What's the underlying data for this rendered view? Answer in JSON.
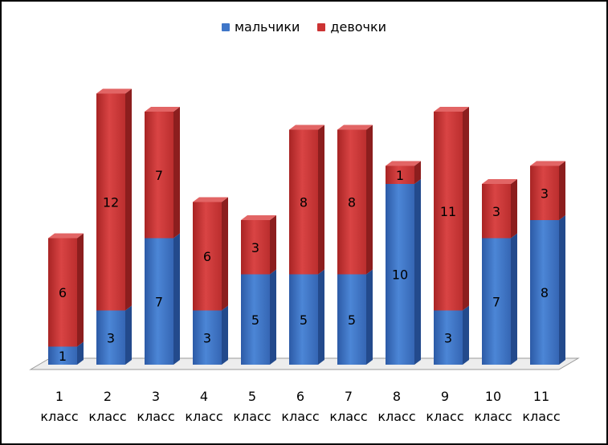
{
  "colors": {
    "boys": "#3f76c8",
    "girls": "#cc3333"
  },
  "chart_data": {
    "type": "bar",
    "stacked": true,
    "style": "3d",
    "legend_position": "top",
    "categories": [
      [
        "1",
        "класс"
      ],
      [
        "2",
        "класс"
      ],
      [
        "3",
        "класс"
      ],
      [
        "4",
        "класс"
      ],
      [
        "5",
        "класс"
      ],
      [
        "6",
        "класс"
      ],
      [
        "7",
        "класс"
      ],
      [
        "8",
        "класс"
      ],
      [
        "9",
        "класс"
      ],
      [
        "10",
        "класс"
      ],
      [
        "11",
        "класс"
      ]
    ],
    "series": [
      {
        "name": "мальчики",
        "values": [
          1,
          3,
          7,
          3,
          5,
          5,
          5,
          10,
          3,
          7,
          8
        ]
      },
      {
        "name": "девочки",
        "values": [
          6,
          12,
          7,
          6,
          3,
          8,
          8,
          1,
          11,
          3,
          3
        ]
      }
    ],
    "ylim": [
      0,
      15
    ],
    "grid": false
  }
}
